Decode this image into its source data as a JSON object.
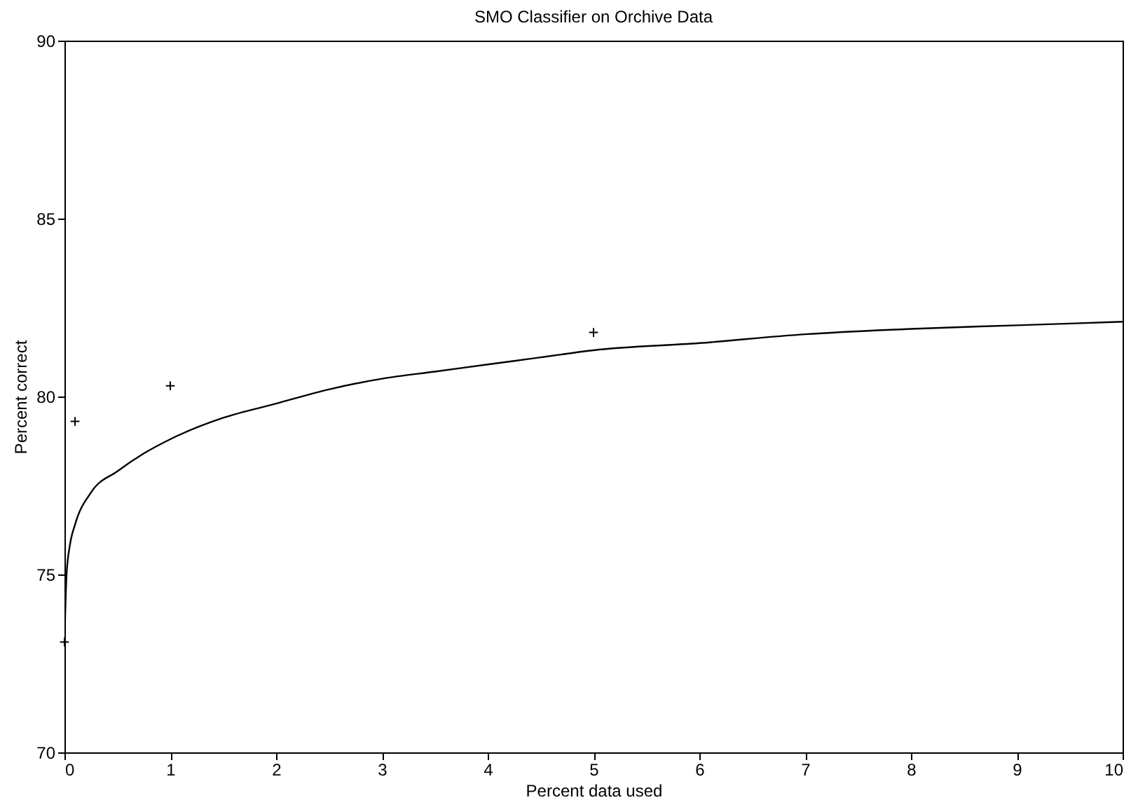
{
  "chart_data": {
    "type": "scatter",
    "title": "SMO Classifier on Orchive Data",
    "xlabel": "Percent data used",
    "ylabel": "Percent correct",
    "xlim": [
      0,
      10
    ],
    "ylim": [
      70,
      90
    ],
    "xticks": [
      0,
      1,
      2,
      3,
      4,
      5,
      6,
      7,
      8,
      9,
      10
    ],
    "yticks": [
      70,
      75,
      80,
      85,
      90
    ],
    "grid": false,
    "series": [
      {
        "color": "#000000",
        "marker": "cross",
        "x": [
          0,
          0.1,
          1,
          5
        ],
        "values": [
          73.1,
          79.3,
          80.3,
          81.8
        ]
      },
      {
        "type": "line",
        "color": "#000000",
        "line_style": "solid",
        "x": [
          0,
          0.02,
          0.05,
          0.1,
          0.25,
          0.5,
          0.75,
          1,
          1.5,
          2,
          2.5,
          3,
          3.5,
          4,
          4.5,
          5,
          6,
          7,
          8,
          9,
          10
        ],
        "values": [
          73.1,
          75.0,
          75.8,
          76.4,
          77.3,
          77.9,
          78.4,
          78.8,
          79.4,
          79.8,
          80.2,
          80.5,
          80.7,
          80.9,
          81.1,
          81.3,
          81.5,
          81.75,
          81.9,
          82.0,
          82.1
        ]
      }
    ]
  }
}
